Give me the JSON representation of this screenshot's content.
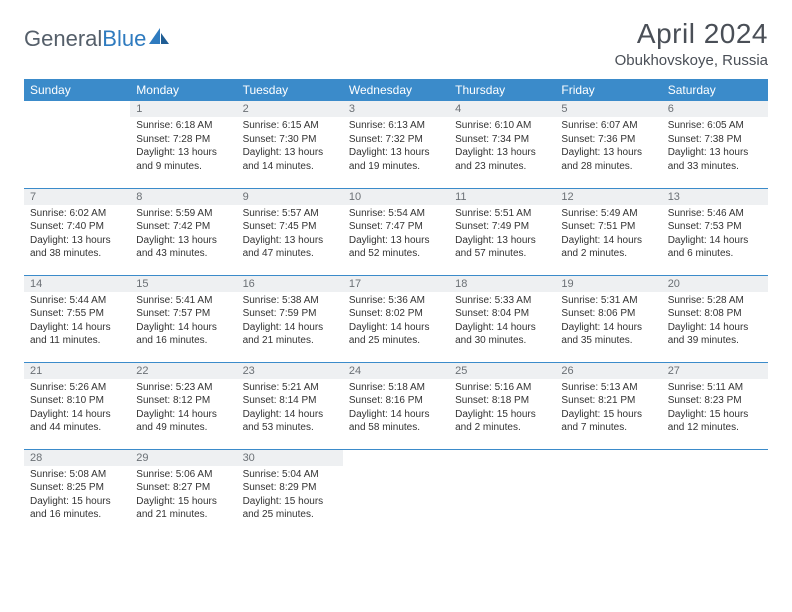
{
  "logo": {
    "part1": "General",
    "part2": "Blue"
  },
  "header": {
    "title": "April 2024",
    "location": "Obukhovskoye, Russia"
  },
  "colors": {
    "header_bg": "#3b8bca",
    "header_text": "#ffffff",
    "daynum_bg": "#eef0f2",
    "daynum_text": "#6b7075",
    "border": "#3b8bca",
    "title_text": "#4a4f57"
  },
  "weekdays": [
    "Sunday",
    "Monday",
    "Tuesday",
    "Wednesday",
    "Thursday",
    "Friday",
    "Saturday"
  ],
  "weeks": [
    [
      {
        "n": "",
        "sunrise": "",
        "sunset": "",
        "daylight": ""
      },
      {
        "n": "1",
        "sunrise": "Sunrise: 6:18 AM",
        "sunset": "Sunset: 7:28 PM",
        "daylight": "Daylight: 13 hours and 9 minutes."
      },
      {
        "n": "2",
        "sunrise": "Sunrise: 6:15 AM",
        "sunset": "Sunset: 7:30 PM",
        "daylight": "Daylight: 13 hours and 14 minutes."
      },
      {
        "n": "3",
        "sunrise": "Sunrise: 6:13 AM",
        "sunset": "Sunset: 7:32 PM",
        "daylight": "Daylight: 13 hours and 19 minutes."
      },
      {
        "n": "4",
        "sunrise": "Sunrise: 6:10 AM",
        "sunset": "Sunset: 7:34 PM",
        "daylight": "Daylight: 13 hours and 23 minutes."
      },
      {
        "n": "5",
        "sunrise": "Sunrise: 6:07 AM",
        "sunset": "Sunset: 7:36 PM",
        "daylight": "Daylight: 13 hours and 28 minutes."
      },
      {
        "n": "6",
        "sunrise": "Sunrise: 6:05 AM",
        "sunset": "Sunset: 7:38 PM",
        "daylight": "Daylight: 13 hours and 33 minutes."
      }
    ],
    [
      {
        "n": "7",
        "sunrise": "Sunrise: 6:02 AM",
        "sunset": "Sunset: 7:40 PM",
        "daylight": "Daylight: 13 hours and 38 minutes."
      },
      {
        "n": "8",
        "sunrise": "Sunrise: 5:59 AM",
        "sunset": "Sunset: 7:42 PM",
        "daylight": "Daylight: 13 hours and 43 minutes."
      },
      {
        "n": "9",
        "sunrise": "Sunrise: 5:57 AM",
        "sunset": "Sunset: 7:45 PM",
        "daylight": "Daylight: 13 hours and 47 minutes."
      },
      {
        "n": "10",
        "sunrise": "Sunrise: 5:54 AM",
        "sunset": "Sunset: 7:47 PM",
        "daylight": "Daylight: 13 hours and 52 minutes."
      },
      {
        "n": "11",
        "sunrise": "Sunrise: 5:51 AM",
        "sunset": "Sunset: 7:49 PM",
        "daylight": "Daylight: 13 hours and 57 minutes."
      },
      {
        "n": "12",
        "sunrise": "Sunrise: 5:49 AM",
        "sunset": "Sunset: 7:51 PM",
        "daylight": "Daylight: 14 hours and 2 minutes."
      },
      {
        "n": "13",
        "sunrise": "Sunrise: 5:46 AM",
        "sunset": "Sunset: 7:53 PM",
        "daylight": "Daylight: 14 hours and 6 minutes."
      }
    ],
    [
      {
        "n": "14",
        "sunrise": "Sunrise: 5:44 AM",
        "sunset": "Sunset: 7:55 PM",
        "daylight": "Daylight: 14 hours and 11 minutes."
      },
      {
        "n": "15",
        "sunrise": "Sunrise: 5:41 AM",
        "sunset": "Sunset: 7:57 PM",
        "daylight": "Daylight: 14 hours and 16 minutes."
      },
      {
        "n": "16",
        "sunrise": "Sunrise: 5:38 AM",
        "sunset": "Sunset: 7:59 PM",
        "daylight": "Daylight: 14 hours and 21 minutes."
      },
      {
        "n": "17",
        "sunrise": "Sunrise: 5:36 AM",
        "sunset": "Sunset: 8:02 PM",
        "daylight": "Daylight: 14 hours and 25 minutes."
      },
      {
        "n": "18",
        "sunrise": "Sunrise: 5:33 AM",
        "sunset": "Sunset: 8:04 PM",
        "daylight": "Daylight: 14 hours and 30 minutes."
      },
      {
        "n": "19",
        "sunrise": "Sunrise: 5:31 AM",
        "sunset": "Sunset: 8:06 PM",
        "daylight": "Daylight: 14 hours and 35 minutes."
      },
      {
        "n": "20",
        "sunrise": "Sunrise: 5:28 AM",
        "sunset": "Sunset: 8:08 PM",
        "daylight": "Daylight: 14 hours and 39 minutes."
      }
    ],
    [
      {
        "n": "21",
        "sunrise": "Sunrise: 5:26 AM",
        "sunset": "Sunset: 8:10 PM",
        "daylight": "Daylight: 14 hours and 44 minutes."
      },
      {
        "n": "22",
        "sunrise": "Sunrise: 5:23 AM",
        "sunset": "Sunset: 8:12 PM",
        "daylight": "Daylight: 14 hours and 49 minutes."
      },
      {
        "n": "23",
        "sunrise": "Sunrise: 5:21 AM",
        "sunset": "Sunset: 8:14 PM",
        "daylight": "Daylight: 14 hours and 53 minutes."
      },
      {
        "n": "24",
        "sunrise": "Sunrise: 5:18 AM",
        "sunset": "Sunset: 8:16 PM",
        "daylight": "Daylight: 14 hours and 58 minutes."
      },
      {
        "n": "25",
        "sunrise": "Sunrise: 5:16 AM",
        "sunset": "Sunset: 8:18 PM",
        "daylight": "Daylight: 15 hours and 2 minutes."
      },
      {
        "n": "26",
        "sunrise": "Sunrise: 5:13 AM",
        "sunset": "Sunset: 8:21 PM",
        "daylight": "Daylight: 15 hours and 7 minutes."
      },
      {
        "n": "27",
        "sunrise": "Sunrise: 5:11 AM",
        "sunset": "Sunset: 8:23 PM",
        "daylight": "Daylight: 15 hours and 12 minutes."
      }
    ],
    [
      {
        "n": "28",
        "sunrise": "Sunrise: 5:08 AM",
        "sunset": "Sunset: 8:25 PM",
        "daylight": "Daylight: 15 hours and 16 minutes."
      },
      {
        "n": "29",
        "sunrise": "Sunrise: 5:06 AM",
        "sunset": "Sunset: 8:27 PM",
        "daylight": "Daylight: 15 hours and 21 minutes."
      },
      {
        "n": "30",
        "sunrise": "Sunrise: 5:04 AM",
        "sunset": "Sunset: 8:29 PM",
        "daylight": "Daylight: 15 hours and 25 minutes."
      },
      {
        "n": "",
        "sunrise": "",
        "sunset": "",
        "daylight": ""
      },
      {
        "n": "",
        "sunrise": "",
        "sunset": "",
        "daylight": ""
      },
      {
        "n": "",
        "sunrise": "",
        "sunset": "",
        "daylight": ""
      },
      {
        "n": "",
        "sunrise": "",
        "sunset": "",
        "daylight": ""
      }
    ]
  ]
}
